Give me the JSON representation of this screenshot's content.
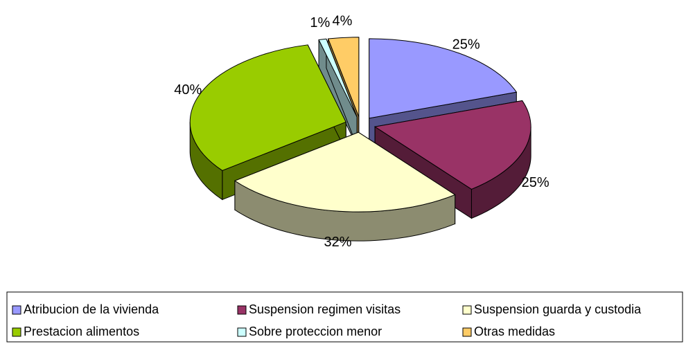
{
  "chart_data": {
    "type": "pie3d",
    "categories": [
      "Atribucion de la vivienda",
      "Suspension regimen visitas",
      "Suspension guarda y custodia",
      "Prestacion alimentos",
      "Sobre proteccion menor",
      "Otras medidas"
    ],
    "values": [
      25,
      25,
      32,
      40,
      1,
      4
    ],
    "value_labels": [
      "25%",
      "25%",
      "32%",
      "40%",
      "1%",
      "4%"
    ],
    "colors": [
      "#9999ff",
      "#993366",
      "#ffffcc",
      "#99cc00",
      "#ccffff",
      "#ffcc66"
    ],
    "legend": "bottom"
  }
}
